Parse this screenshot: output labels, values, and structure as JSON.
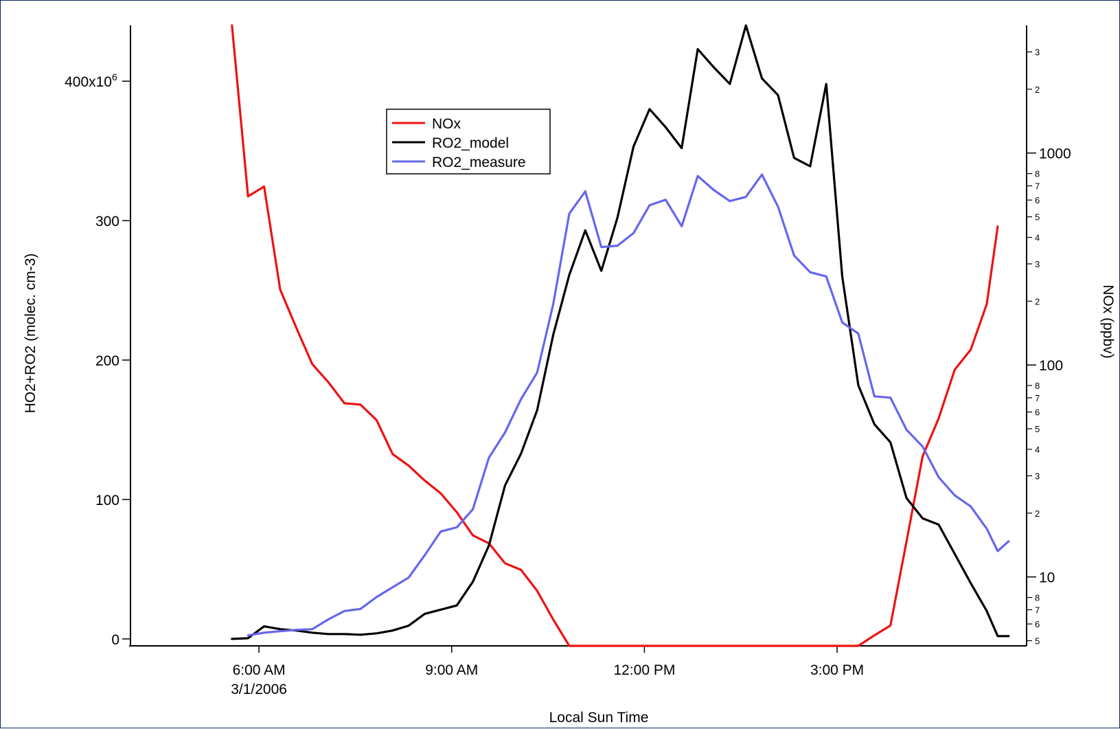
{
  "chart_data": {
    "type": "line",
    "xlabel": "Local Sun Time",
    "ylabel_left": "HO2+RO2 (molec. cm-3)",
    "ylabel_right": "NOx (ppbv)",
    "x_unit": "hours (local sun time)",
    "xlim": [
      4.0,
      17.8
    ],
    "ylim_left": [
      -4,
      440
    ],
    "ylim_right_log": [
      4.8,
      4000
    ],
    "x_ticks": [
      {
        "x": 6,
        "label": "6:00 AM",
        "sublabel": "3/1/2006"
      },
      {
        "x": 9,
        "label": "9:00 AM",
        "sublabel": ""
      },
      {
        "x": 12,
        "label": "12:00 PM",
        "sublabel": ""
      },
      {
        "x": 15,
        "label": "3:00 PM",
        "sublabel": ""
      }
    ],
    "y_left_ticks": [
      {
        "v": 0,
        "label": "0"
      },
      {
        "v": 100,
        "label": "100"
      },
      {
        "v": 200,
        "label": "200"
      },
      {
        "v": 300,
        "label": "300"
      },
      {
        "v": 400,
        "label": "400x10",
        "sup": "6"
      }
    ],
    "y_right_major_ticks": [
      {
        "v": 10,
        "label": "10"
      },
      {
        "v": 100,
        "label": "100"
      },
      {
        "v": 1000,
        "label": "1000"
      }
    ],
    "y_right_minor_ticks": [
      {
        "v": 5,
        "label": "5"
      },
      {
        "v": 6,
        "label": "6"
      },
      {
        "v": 7,
        "label": "7"
      },
      {
        "v": 8,
        "label": "8"
      },
      {
        "v": 20,
        "label": "2"
      },
      {
        "v": 30,
        "label": "3"
      },
      {
        "v": 40,
        "label": "4"
      },
      {
        "v": 50,
        "label": "5"
      },
      {
        "v": 60,
        "label": "6"
      },
      {
        "v": 70,
        "label": "7"
      },
      {
        "v": 80,
        "label": "8"
      },
      {
        "v": 200,
        "label": "2"
      },
      {
        "v": 300,
        "label": "3"
      },
      {
        "v": 400,
        "label": "4"
      },
      {
        "v": 500,
        "label": "5"
      },
      {
        "v": 600,
        "label": "6"
      },
      {
        "v": 700,
        "label": "7"
      },
      {
        "v": 800,
        "label": "8"
      },
      {
        "v": 2000,
        "label": "2"
      },
      {
        "v": 3000,
        "label": "3"
      }
    ],
    "legend_position": "top-left of plot area",
    "series": [
      {
        "name": "NOx",
        "axis": "right",
        "color": "#ee1111",
        "points": [
          [
            5.58,
            4000
          ],
          [
            5.83,
            625
          ],
          [
            6.08,
            695
          ],
          [
            6.33,
            227
          ],
          [
            6.58,
            150
          ],
          [
            6.83,
            101
          ],
          [
            7.08,
            83
          ],
          [
            7.33,
            66
          ],
          [
            7.58,
            65
          ],
          [
            7.83,
            55
          ],
          [
            8.08,
            38
          ],
          [
            8.33,
            33.5
          ],
          [
            8.58,
            28.5
          ],
          [
            8.83,
            24.8
          ],
          [
            9.08,
            20.2
          ],
          [
            9.33,
            15.7
          ],
          [
            9.58,
            14.4
          ],
          [
            9.83,
            11.6
          ],
          [
            10.08,
            10.8
          ],
          [
            10.33,
            8.6
          ],
          [
            10.58,
            6.3
          ],
          [
            10.83,
            4.4
          ],
          [
            11.08,
            4.0
          ],
          [
            11.33,
            3.72
          ],
          [
            11.58,
            3.42
          ],
          [
            11.83,
            3.06
          ],
          [
            12.08,
            2.86
          ],
          [
            12.33,
            2.84
          ],
          [
            12.58,
            3.0
          ],
          [
            12.83,
            2.6
          ],
          [
            13.08,
            2.74
          ],
          [
            13.33,
            2.57
          ],
          [
            13.58,
            2.4
          ],
          [
            13.83,
            2.45
          ],
          [
            14.08,
            2.68
          ],
          [
            14.33,
            2.5
          ],
          [
            14.58,
            2.78
          ],
          [
            14.83,
            2.48
          ],
          [
            15.08,
            3.36
          ],
          [
            15.33,
            4.05
          ],
          [
            15.58,
            5.3
          ],
          [
            15.83,
            5.9
          ],
          [
            16.08,
            14.7
          ],
          [
            16.33,
            37
          ],
          [
            16.58,
            56
          ],
          [
            16.83,
            95
          ],
          [
            17.08,
            118
          ],
          [
            17.33,
            194
          ],
          [
            17.5,
            450
          ]
        ]
      },
      {
        "name": "RO2_model",
        "axis": "left",
        "color": "#000000",
        "points": [
          [
            5.58,
            0
          ],
          [
            5.83,
            0.5
          ],
          [
            6.08,
            9
          ],
          [
            6.33,
            7
          ],
          [
            6.58,
            6
          ],
          [
            6.83,
            4.5
          ],
          [
            7.08,
            3.5
          ],
          [
            7.33,
            3.5
          ],
          [
            7.58,
            3
          ],
          [
            7.83,
            4
          ],
          [
            8.08,
            6
          ],
          [
            8.33,
            9.5
          ],
          [
            8.58,
            18
          ],
          [
            8.83,
            21
          ],
          [
            9.08,
            24
          ],
          [
            9.33,
            41
          ],
          [
            9.58,
            67
          ],
          [
            9.83,
            110
          ],
          [
            10.08,
            133
          ],
          [
            10.33,
            164
          ],
          [
            10.58,
            218
          ],
          [
            10.83,
            261
          ],
          [
            11.08,
            293
          ],
          [
            11.33,
            264
          ],
          [
            11.58,
            302
          ],
          [
            11.83,
            353
          ],
          [
            12.08,
            380
          ],
          [
            12.33,
            367
          ],
          [
            12.58,
            352
          ],
          [
            12.83,
            423
          ],
          [
            13.08,
            410
          ],
          [
            13.33,
            398
          ],
          [
            13.58,
            440
          ],
          [
            13.83,
            402
          ],
          [
            14.08,
            390
          ],
          [
            14.33,
            345
          ],
          [
            14.58,
            339
          ],
          [
            14.83,
            398
          ],
          [
            15.08,
            260
          ],
          [
            15.33,
            182
          ],
          [
            15.58,
            154
          ],
          [
            15.83,
            141
          ],
          [
            16.08,
            101
          ],
          [
            16.33,
            86.5
          ],
          [
            16.58,
            82
          ],
          [
            16.83,
            61
          ],
          [
            17.08,
            40
          ],
          [
            17.33,
            20
          ],
          [
            17.5,
            2
          ],
          [
            17.67,
            2
          ]
        ]
      },
      {
        "name": "RO2_measure",
        "axis": "left",
        "color": "#6666ee",
        "points": [
          [
            5.83,
            2.5
          ],
          [
            6.08,
            4.5
          ],
          [
            6.33,
            5.5
          ],
          [
            6.58,
            6.5
          ],
          [
            6.83,
            7
          ],
          [
            7.08,
            14
          ],
          [
            7.33,
            20
          ],
          [
            7.58,
            21.5
          ],
          [
            7.83,
            30
          ],
          [
            8.08,
            37
          ],
          [
            8.33,
            44
          ],
          [
            8.58,
            60
          ],
          [
            8.83,
            77
          ],
          [
            9.08,
            80
          ],
          [
            9.33,
            93
          ],
          [
            9.58,
            130
          ],
          [
            9.83,
            148
          ],
          [
            10.08,
            172
          ],
          [
            10.33,
            191
          ],
          [
            10.58,
            240
          ],
          [
            10.83,
            305
          ],
          [
            11.08,
            321
          ],
          [
            11.33,
            281
          ],
          [
            11.58,
            282
          ],
          [
            11.83,
            291
          ],
          [
            12.08,
            311
          ],
          [
            12.33,
            315
          ],
          [
            12.58,
            296
          ],
          [
            12.83,
            332
          ],
          [
            13.08,
            322
          ],
          [
            13.33,
            314
          ],
          [
            13.58,
            317
          ],
          [
            13.83,
            333
          ],
          [
            14.08,
            310
          ],
          [
            14.33,
            275
          ],
          [
            14.58,
            263
          ],
          [
            14.83,
            260
          ],
          [
            15.08,
            227
          ],
          [
            15.33,
            219
          ],
          [
            15.58,
            174
          ],
          [
            15.83,
            173
          ],
          [
            16.08,
            150
          ],
          [
            16.33,
            138
          ],
          [
            16.58,
            116
          ],
          [
            16.83,
            103
          ],
          [
            17.08,
            95
          ],
          [
            17.33,
            79
          ],
          [
            17.5,
            63
          ],
          [
            17.67,
            70
          ]
        ]
      }
    ]
  }
}
